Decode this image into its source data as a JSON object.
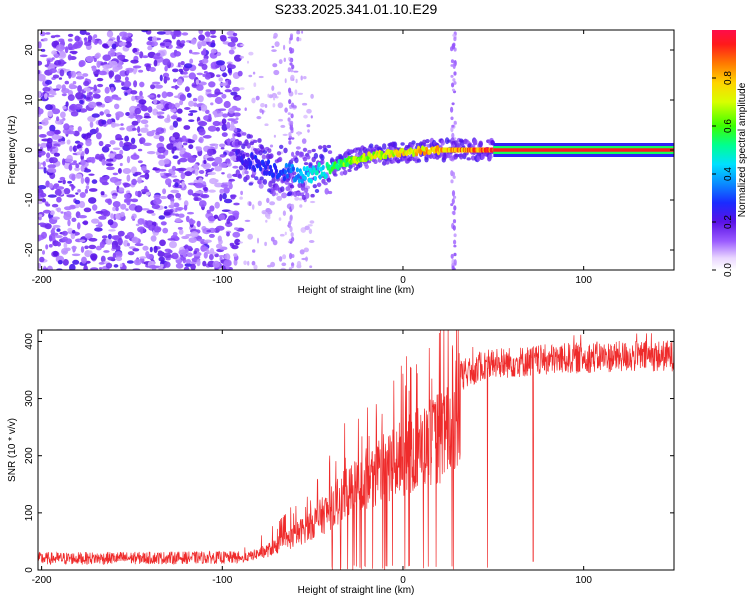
{
  "title": "S233.2025.341.01.10.E29",
  "chart_data": [
    {
      "type": "heatmap",
      "xlabel": "Height of straight line (km)",
      "ylabel": "Frequency (Hz)",
      "xlim": [
        -202,
        150
      ],
      "ylim": [
        -24,
        24
      ],
      "xticks": [
        -200,
        -100,
        0,
        100
      ],
      "yticks": [
        -20,
        -10,
        0,
        10,
        20
      ],
      "colorbar": {
        "label": "Normalized spectral amplitude",
        "range": [
          0,
          1
        ],
        "ticks": [
          0.0,
          0.2,
          0.4,
          0.6,
          0.8
        ]
      },
      "ridge": [
        {
          "x": -90,
          "y": -1.5,
          "a": 0.25
        },
        {
          "x": -70,
          "y": -4,
          "a": 0.3
        },
        {
          "x": -52,
          "y": -5,
          "a": 0.45
        },
        {
          "x": -40,
          "y": -3.5,
          "a": 0.55
        },
        {
          "x": -28,
          "y": -2,
          "a": 0.7
        },
        {
          "x": -15,
          "y": -1,
          "a": 0.75
        },
        {
          "x": 0,
          "y": -0.5,
          "a": 0.8
        },
        {
          "x": 15,
          "y": 0,
          "a": 0.85
        },
        {
          "x": 30,
          "y": 0,
          "a": 0.9
        },
        {
          "x": 50,
          "y": 0,
          "a": 0.95
        },
        {
          "x": 150,
          "y": 0,
          "a": 1.0
        }
      ]
    },
    {
      "type": "line",
      "xlabel": "Height of straight line (km)",
      "ylabel": "SNR (10 * v/v)",
      "xlim": [
        -202,
        150
      ],
      "ylim": [
        0,
        420
      ],
      "xticks": [
        -200,
        -100,
        0,
        100
      ],
      "yticks": [
        0,
        100,
        200,
        300,
        400
      ],
      "color": "#ef2b2b",
      "envelope": [
        {
          "x": -202,
          "y": 20
        },
        {
          "x": -90,
          "y": 22
        },
        {
          "x": -75,
          "y": 40
        },
        {
          "x": -60,
          "y": 70
        },
        {
          "x": -45,
          "y": 110
        },
        {
          "x": -30,
          "y": 160
        },
        {
          "x": -15,
          "y": 200
        },
        {
          "x": 0,
          "y": 230
        },
        {
          "x": 15,
          "y": 260
        },
        {
          "x": 25,
          "y": 285
        },
        {
          "x": 32,
          "y": 340
        },
        {
          "x": 45,
          "y": 360
        },
        {
          "x": 100,
          "y": 372
        },
        {
          "x": 150,
          "y": 375
        }
      ]
    }
  ]
}
